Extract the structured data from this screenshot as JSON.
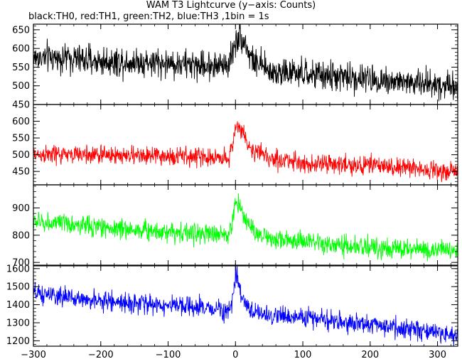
{
  "title": "WAM T3 Lightcurve (y−axis: Counts)",
  "subtitle": "black:TH0, red:TH1, green:TH2, blue:TH3 ,1bin = 1s",
  "chart_data": {
    "type": "line",
    "x_range": [
      -300,
      330
    ],
    "x_ticks": [
      -300,
      -200,
      -100,
      0,
      100,
      200,
      300
    ],
    "x_tick_labels": [
      "−300",
      "−200",
      "−100",
      "0",
      "100",
      "200",
      "300"
    ],
    "panels": [
      {
        "name": "TH0",
        "color": "#000000",
        "y_range": [
          450,
          665
        ],
        "y_ticks": [
          450,
          500,
          550,
          600,
          650
        ],
        "series": {
          "x": [
            -300,
            -250,
            -200,
            -150,
            -100,
            -50,
            -20,
            -10,
            -5,
            0,
            5,
            10,
            15,
            20,
            30,
            50,
            100,
            150,
            200,
            250,
            300,
            330
          ],
          "y": [
            575,
            575,
            565,
            565,
            560,
            555,
            555,
            560,
            585,
            620,
            632,
            628,
            615,
            585,
            560,
            540,
            530,
            525,
            518,
            510,
            505,
            500
          ],
          "noise": 28
        }
      },
      {
        "name": "TH1",
        "color": "#ff0000",
        "y_range": [
          410,
          650
        ],
        "y_ticks": [
          450,
          500,
          550,
          600
        ],
        "series": {
          "x": [
            -300,
            -250,
            -200,
            -150,
            -100,
            -50,
            -20,
            -10,
            -5,
            0,
            5,
            10,
            15,
            20,
            30,
            50,
            100,
            150,
            200,
            250,
            300,
            330
          ],
          "y": [
            500,
            500,
            500,
            497,
            495,
            493,
            490,
            495,
            520,
            580,
            590,
            570,
            545,
            525,
            508,
            490,
            475,
            470,
            468,
            462,
            455,
            452
          ],
          "noise": 20
        }
      },
      {
        "name": "TH2",
        "color": "#00ff00",
        "y_range": [
          690,
          985
        ],
        "y_ticks": [
          700,
          800,
          900
        ],
        "series": {
          "x": [
            -300,
            -250,
            -200,
            -150,
            -100,
            -50,
            -20,
            -10,
            -5,
            0,
            5,
            10,
            15,
            20,
            30,
            50,
            100,
            150,
            200,
            250,
            300,
            330
          ],
          "y": [
            850,
            840,
            830,
            820,
            815,
            805,
            800,
            805,
            840,
            920,
            920,
            890,
            860,
            835,
            810,
            790,
            775,
            760,
            755,
            750,
            745,
            740
          ],
          "noise": 26
        }
      },
      {
        "name": "TH3",
        "color": "#0000ff",
        "y_range": [
          1170,
          1615
        ],
        "y_ticks": [
          1200,
          1300,
          1400,
          1500,
          1600
        ],
        "series": {
          "x": [
            -300,
            -250,
            -200,
            -150,
            -100,
            -50,
            -20,
            -10,
            -5,
            0,
            5,
            10,
            15,
            20,
            30,
            50,
            100,
            150,
            200,
            250,
            300,
            330
          ],
          "y": [
            1460,
            1440,
            1420,
            1410,
            1395,
            1380,
            1375,
            1378,
            1400,
            1560,
            1500,
            1430,
            1400,
            1380,
            1360,
            1340,
            1330,
            1310,
            1290,
            1270,
            1240,
            1230
          ],
          "noise": 38
        }
      }
    ]
  }
}
